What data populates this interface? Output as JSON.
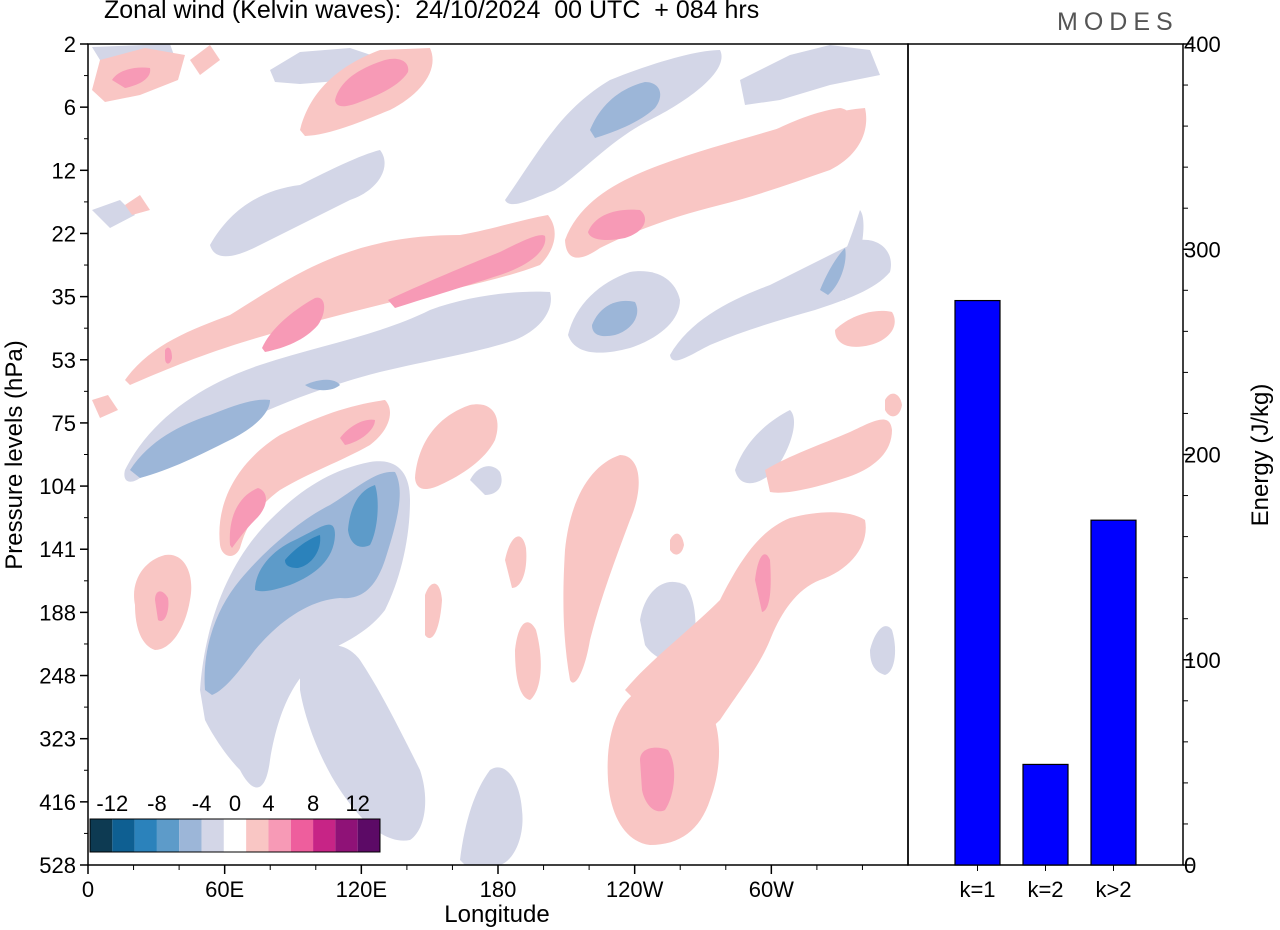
{
  "header": {
    "title": "Zonal wind (Kelvin waves):  24/10/2024  00 UTC  + 084 hrs",
    "brand": "MODES"
  },
  "chart_data": [
    {
      "type": "heatmap",
      "title": "Zonal wind (Kelvin waves):  24/10/2024  00 UTC  + 084 hrs",
      "xlabel": "Longitude",
      "ylabel": "Pressure levels (hPa)",
      "x_ticks": [
        "0",
        "60E",
        "120E",
        "180",
        "120W",
        "60W"
      ],
      "x_tick_degrees": [
        0,
        60,
        120,
        180,
        240,
        300
      ],
      "xlim": [
        0,
        360
      ],
      "y_ticks": [
        "2",
        "6",
        "12",
        "22",
        "35",
        "53",
        "75",
        "104",
        "141",
        "188",
        "248",
        "323",
        "416",
        "528"
      ],
      "y_scale": "level-index",
      "colorbar": {
        "labels": [
          "-12",
          "-8",
          "-4",
          "0",
          "4",
          "8",
          "12"
        ],
        "levels": [
          -14,
          -12,
          -10,
          -8,
          -6,
          -4,
          -2,
          2,
          4,
          6,
          8,
          10,
          12,
          14
        ],
        "colors": [
          "#0d3a52",
          "#0e5f92",
          "#2b82bb",
          "#5d9bc9",
          "#9cb6d8",
          "#d3d6e7",
          "#ffffff",
          "#f9c6c4",
          "#f79ab6",
          "#ee5e9d",
          "#c72486",
          "#8f1277",
          "#5c0a66"
        ]
      },
      "features": [
        {
          "sign": "neg",
          "peak": -12,
          "lon": 95,
          "lev": 8.4
        },
        {
          "sign": "neg",
          "peak": -8,
          "lon": 116,
          "lev": 7.9
        },
        {
          "sign": "neg",
          "peak": -8,
          "lon": 66,
          "lev": 10.6
        },
        {
          "sign": "neg",
          "peak": -6,
          "lon": 48,
          "lev": 6.3
        },
        {
          "sign": "pos",
          "peak": 6,
          "lon": 65,
          "lev": 7.4
        },
        {
          "sign": "pos",
          "peak": 6,
          "lon": 110,
          "lev": 6.2
        },
        {
          "sign": "pos",
          "peak": 6,
          "lon": 35,
          "lev": 9.0
        },
        {
          "sign": "pos",
          "peak": 6,
          "lon": 90,
          "lev": 4.4
        },
        {
          "sign": "pos",
          "peak": 6,
          "lon": 175,
          "lev": 3.6
        },
        {
          "sign": "pos",
          "peak": 6,
          "lon": 130,
          "lev": 0.5
        },
        {
          "sign": "pos",
          "peak": 6,
          "lon": 222,
          "lev": 2.9
        },
        {
          "sign": "pos",
          "peak": 6,
          "lon": 258,
          "lev": 12.2
        },
        {
          "sign": "pos",
          "peak": 6,
          "lon": 295,
          "lev": 9.0
        },
        {
          "sign": "neg",
          "peak": -6,
          "lon": 232,
          "lev": 0.9
        },
        {
          "sign": "neg",
          "peak": -6,
          "lon": 235,
          "lev": 4.2
        }
      ]
    },
    {
      "type": "bar",
      "categories": [
        "k=1",
        "k=2",
        "k>2"
      ],
      "values": [
        275,
        49,
        168
      ],
      "ylabel": "Energy (J/kg)",
      "ylim": [
        0,
        400
      ],
      "y_ticks": [
        0,
        100,
        200,
        300,
        400
      ],
      "bar_color": "#0000ff"
    }
  ]
}
